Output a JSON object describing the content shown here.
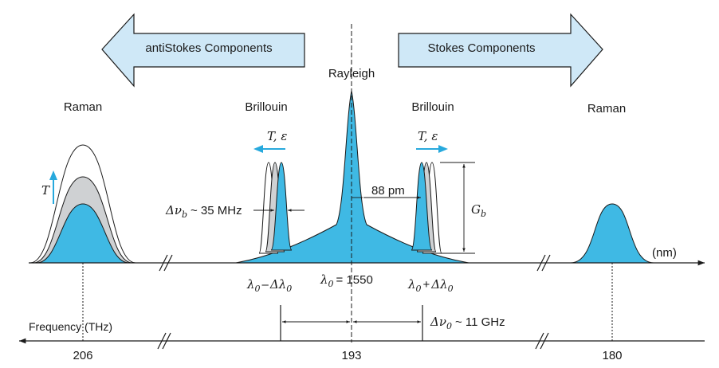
{
  "arrows": {
    "anti_stokes": "antiStokes  Components",
    "stokes": "Stokes Components"
  },
  "peaks": {
    "rayleigh": "Rayleigh",
    "brillouin_left": "Brillouin",
    "brillouin_right": "Brillouin",
    "raman_left": "Raman",
    "raman_right": "Raman"
  },
  "labels": {
    "te_left": "T, ε",
    "te_right": "T, ε",
    "T_arrow": "T",
    "delta_nu_b_sym": "Δν",
    "delta_nu_b_sub": "b",
    "delta_nu_b_val": "~ 35 MHz",
    "spacing_88": "88 pm",
    "gb": "G",
    "gb_sub": "b",
    "nm_axis": "(nm)",
    "lambda0_minus": "λ0 – Δλ0",
    "lambda0_eq": "λ0 = 1550",
    "lambda0_plus": "λ0 + Δλ0",
    "delta_nu0_sym": "Δν",
    "delta_nu0_sub": "0",
    "delta_nu0_val": "~ 11 GHz",
    "freq_axis": "Frequency (THz)"
  },
  "freq_ticks": [
    "206",
    "193",
    "180"
  ],
  "colors": {
    "peak_fill": "#3fb9e4",
    "grey_fill": "#cfd1d3",
    "big_arrow_fill": "#cfe8f7",
    "small_arrow": "#27a9dd"
  }
}
